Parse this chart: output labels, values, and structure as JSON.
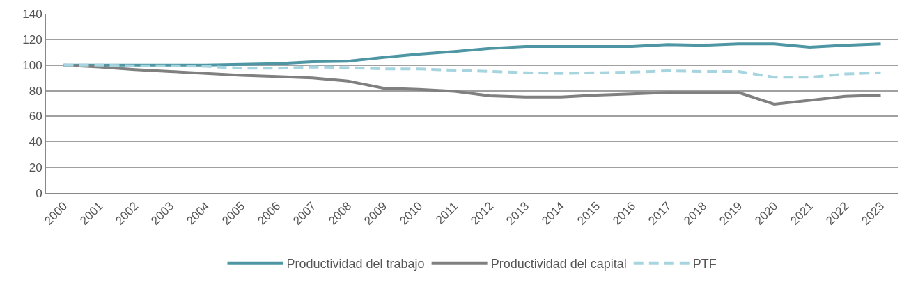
{
  "chart_data": {
    "type": "line",
    "categories": [
      "2000",
      "2001",
      "2002",
      "2003",
      "2004",
      "2005",
      "2006",
      "2007",
      "2008",
      "2009",
      "2010",
      "2011",
      "2012",
      "2013",
      "2014",
      "2015",
      "2016",
      "2017",
      "2018",
      "2019",
      "2020",
      "2021",
      "2022",
      "2023"
    ],
    "series": [
      {
        "name": "Productividad del trabajo",
        "color": "#4e96a3",
        "line_style": "solid",
        "values": [
          100,
          100,
          100,
          100,
          100,
          100.5,
          101,
          102.5,
          103,
          106,
          108.5,
          110.5,
          113,
          114.5,
          114.5,
          114.5,
          114.5,
          116,
          115.5,
          116.5,
          116.5,
          114,
          115.5,
          116.5
        ]
      },
      {
        "name": "Productividad del capital",
        "color": "#808080",
        "line_style": "solid",
        "values": [
          100,
          98.5,
          96.5,
          95,
          93.5,
          92,
          91,
          90,
          87.5,
          82,
          81,
          79.5,
          76,
          75,
          75,
          76.5,
          77.5,
          78.5,
          78.5,
          78.5,
          69.5,
          72.5,
          75.5,
          76.5
        ]
      },
      {
        "name": "PTF",
        "color": "#a6d4df",
        "line_style": "dashed",
        "values": [
          100,
          100,
          99.5,
          99.5,
          99,
          97.5,
          97.5,
          98.5,
          98,
          97,
          97,
          96,
          95,
          94,
          93.5,
          94,
          94.5,
          95.5,
          95,
          95,
          90.5,
          90.5,
          93,
          94
        ]
      }
    ],
    "ylim": [
      0,
      140
    ],
    "yticks": [
      0,
      20,
      40,
      60,
      80,
      100,
      120,
      140
    ],
    "grid": "y",
    "legend": "bottom",
    "marker": "none"
  }
}
